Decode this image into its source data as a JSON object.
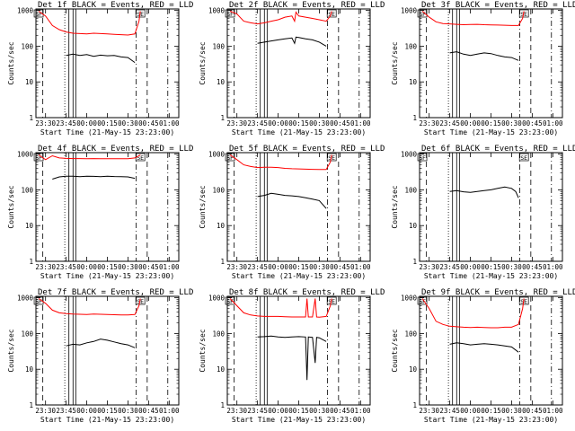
{
  "colors": {
    "events": "#000000",
    "lld": "#ff0000",
    "axis": "#000000",
    "background": "#ffffff"
  },
  "common": {
    "xlabel": "Start Time (21-May-15 23:23:00)",
    "ylabel": "Counts/sec",
    "x_ticks": [
      "23:30",
      "23:45",
      "00:00",
      "00:15",
      "00:30",
      "00:45",
      "01:00"
    ],
    "y_ticks": [
      "1",
      "10",
      "100",
      "1000"
    ]
  },
  "chart_data": [
    {
      "type": "line",
      "title": "Det 1f BLACK = Events, RED = LLD",
      "xlabel": "Start Time (21-May-15 23:23:00)",
      "ylabel": "Counts/sec",
      "xlim": [
        "23:23",
        "01:07"
      ],
      "ylim": [
        1,
        1100
      ],
      "ylog": true,
      "top_markers": [
        {
          "label": "SF",
          "time": "23:25"
        },
        {
          "label": "SE",
          "time": "00:39"
        }
      ],
      "series": [
        {
          "color": "#000000",
          "x": [
            "23:45",
            "23:50",
            "23:55",
            "00:00",
            "00:05",
            "00:10",
            "00:15",
            "00:20",
            "00:25",
            "00:30",
            "00:35"
          ],
          "y": [
            55,
            60,
            55,
            58,
            52,
            56,
            54,
            55,
            50,
            48,
            35
          ]
        },
        {
          "color": "#ff0000",
          "x": [
            "23:25",
            "23:30",
            "23:35",
            "23:40",
            "23:45",
            "23:50",
            "23:55",
            "00:00",
            "00:05",
            "00:10",
            "00:15",
            "00:20",
            "00:25",
            "00:30",
            "00:35",
            "00:38",
            "00:39"
          ],
          "y": [
            950,
            700,
            380,
            290,
            250,
            230,
            225,
            220,
            230,
            225,
            220,
            215,
            210,
            205,
            220,
            500,
            950
          ]
        }
      ]
    },
    {
      "type": "line",
      "title": "Det 2f BLACK = Events, RED = LLD",
      "xlabel": "Start Time (21-May-15 23:23:00)",
      "ylabel": "Counts/sec",
      "xlim": [
        "23:23",
        "01:07"
      ],
      "ylim": [
        1,
        1100
      ],
      "ylog": true,
      "top_markers": [
        {
          "label": "SF",
          "time": "23:25"
        },
        {
          "label": "SE",
          "time": "00:39"
        }
      ],
      "series": [
        {
          "color": "#000000",
          "x": [
            "23:45",
            "23:50",
            "23:55",
            "00:00",
            "00:05",
            "00:10",
            "00:12",
            "00:13",
            "00:15",
            "00:20",
            "00:25",
            "00:30",
            "00:35"
          ],
          "y": [
            120,
            130,
            140,
            150,
            160,
            170,
            120,
            180,
            175,
            160,
            150,
            130,
            100
          ]
        },
        {
          "color": "#ff0000",
          "x": [
            "23:25",
            "23:30",
            "23:35",
            "23:40",
            "23:45",
            "23:50",
            "23:55",
            "00:00",
            "00:05",
            "00:10",
            "00:12",
            "00:13",
            "00:15",
            "00:20",
            "00:25",
            "00:30",
            "00:35",
            "00:38",
            "00:39"
          ],
          "y": [
            950,
            800,
            500,
            450,
            420,
            450,
            500,
            550,
            650,
            700,
            500,
            900,
            700,
            650,
            600,
            550,
            500,
            700,
            950
          ]
        }
      ]
    },
    {
      "type": "line",
      "title": "Det 3f BLACK = Events, RED = LLD",
      "xlabel": "Start Time (21-May-15 23:23:00)",
      "ylabel": "Counts/sec",
      "xlim": [
        "23:23",
        "01:07"
      ],
      "ylim": [
        1,
        1100
      ],
      "ylog": true,
      "top_markers": [
        {
          "label": "SF",
          "time": "23:25"
        },
        {
          "label": "SE",
          "time": "00:39"
        }
      ],
      "series": [
        {
          "color": "#000000",
          "x": [
            "23:45",
            "23:50",
            "23:55",
            "00:00",
            "00:05",
            "00:10",
            "00:15",
            "00:20",
            "00:25",
            "00:30",
            "00:35"
          ],
          "y": [
            65,
            70,
            60,
            55,
            60,
            65,
            62,
            55,
            50,
            48,
            40
          ]
        },
        {
          "color": "#ff0000",
          "x": [
            "23:25",
            "23:30",
            "23:35",
            "23:40",
            "23:45",
            "23:50",
            "23:55",
            "00:00",
            "00:05",
            "00:10",
            "00:15",
            "00:20",
            "00:25",
            "00:30",
            "00:35",
            "00:38",
            "00:39"
          ],
          "y": [
            950,
            650,
            480,
            430,
            420,
            410,
            400,
            405,
            410,
            400,
            395,
            390,
            385,
            380,
            380,
            600,
            950
          ]
        }
      ]
    },
    {
      "type": "line",
      "title": "Det 4f BLACK = Events, RED = LLD",
      "xlabel": "Start Time (21-May-15 23:23:00)",
      "ylabel": "Counts/sec",
      "xlim": [
        "23:23",
        "01:07"
      ],
      "ylim": [
        1,
        1100
      ],
      "ylog": true,
      "top_markers": [
        {
          "label": "SF",
          "time": "23:25"
        },
        {
          "label": "SE",
          "time": "00:39"
        }
      ],
      "series": [
        {
          "color": "#000000",
          "x": [
            "23:35",
            "23:40",
            "23:45",
            "23:50",
            "23:55",
            "00:00",
            "00:05",
            "00:10",
            "00:15",
            "00:20",
            "00:25",
            "00:30",
            "00:35"
          ],
          "y": [
            200,
            230,
            240,
            240,
            235,
            240,
            238,
            235,
            240,
            236,
            234,
            230,
            210
          ]
        },
        {
          "color": "#ff0000",
          "x": [
            "23:25",
            "23:30",
            "23:35",
            "23:40",
            "23:45",
            "23:50",
            "23:55",
            "00:00",
            "00:05",
            "00:10",
            "00:15",
            "00:20",
            "00:25",
            "00:30",
            "00:35",
            "00:38",
            "00:39"
          ],
          "y": [
            950,
            700,
            900,
            780,
            760,
            750,
            750,
            745,
            750,
            748,
            745,
            745,
            740,
            740,
            780,
            900,
            950
          ]
        }
      ]
    },
    {
      "type": "line",
      "title": "Det 5f BLACK = Events, RED = LLD",
      "xlabel": "Start Time (21-May-15 23:23:00)",
      "ylabel": "Counts/sec",
      "xlim": [
        "23:23",
        "01:07"
      ],
      "ylim": [
        1,
        1100
      ],
      "ylog": true,
      "top_markers": [
        {
          "label": "SF",
          "time": "23:25"
        },
        {
          "label": "SE",
          "time": "00:39"
        }
      ],
      "series": [
        {
          "color": "#000000",
          "x": [
            "23:45",
            "23:50",
            "23:55",
            "00:00",
            "00:05",
            "00:10",
            "00:15",
            "00:20",
            "00:25",
            "00:30",
            "00:35"
          ],
          "y": [
            65,
            70,
            80,
            75,
            70,
            68,
            65,
            60,
            55,
            50,
            30
          ]
        },
        {
          "color": "#ff0000",
          "x": [
            "23:25",
            "23:30",
            "23:35",
            "23:40",
            "23:45",
            "23:50",
            "23:55",
            "00:00",
            "00:05",
            "00:10",
            "00:15",
            "00:20",
            "00:25",
            "00:30",
            "00:35",
            "00:38",
            "00:39"
          ],
          "y": [
            950,
            700,
            500,
            450,
            420,
            430,
            430,
            420,
            400,
            390,
            385,
            380,
            375,
            370,
            370,
            600,
            950
          ]
        }
      ]
    },
    {
      "type": "line",
      "title": "Det 6f BLACK = Events, RED = LLD",
      "xlabel": "Start Time (21-May-15 23:23:00)",
      "ylabel": "Counts/sec",
      "xlim": [
        "23:23",
        "01:07"
      ],
      "ylim": [
        1,
        1100
      ],
      "ylog": true,
      "top_markers": [
        {
          "label": "SF",
          "time": "23:25"
        },
        {
          "label": "SE",
          "time": "00:39"
        }
      ],
      "series": [
        {
          "color": "#000000",
          "x": [
            "23:45",
            "23:50",
            "23:55",
            "00:00",
            "00:05",
            "00:10",
            "00:15",
            "00:20",
            "00:25",
            "00:30",
            "00:33",
            "00:35"
          ],
          "y": [
            90,
            95,
            88,
            85,
            90,
            95,
            100,
            110,
            120,
            110,
            90,
            60
          ]
        }
      ]
    },
    {
      "type": "line",
      "title": "Det 7f BLACK = Events, RED = LLD",
      "xlabel": "Start Time (21-May-15 23:23:00)",
      "ylabel": "Counts/sec",
      "xlim": [
        "23:23",
        "01:07"
      ],
      "ylim": [
        1,
        1100
      ],
      "ylog": true,
      "top_markers": [
        {
          "label": "SF",
          "time": "23:25"
        },
        {
          "label": "SE",
          "time": "00:39"
        }
      ],
      "series": [
        {
          "color": "#000000",
          "x": [
            "23:45",
            "23:50",
            "23:55",
            "00:00",
            "00:05",
            "00:10",
            "00:15",
            "00:20",
            "00:25",
            "00:30",
            "00:35"
          ],
          "y": [
            45,
            50,
            48,
            55,
            60,
            70,
            65,
            58,
            52,
            48,
            40
          ]
        },
        {
          "color": "#ff0000",
          "x": [
            "23:25",
            "23:30",
            "23:35",
            "23:40",
            "23:45",
            "23:50",
            "23:55",
            "00:00",
            "00:05",
            "00:10",
            "00:15",
            "00:20",
            "00:25",
            "00:30",
            "00:35",
            "00:38",
            "00:39"
          ],
          "y": [
            950,
            700,
            450,
            380,
            360,
            350,
            345,
            340,
            350,
            345,
            340,
            335,
            330,
            330,
            340,
            600,
            950
          ]
        }
      ]
    },
    {
      "type": "line",
      "title": "Det 8f BLACK = Events, RED = LLD",
      "xlabel": "Start Time (21-May-15 23:23:00)",
      "ylabel": "Counts/sec",
      "xlim": [
        "23:23",
        "01:07"
      ],
      "ylim": [
        1,
        1100
      ],
      "ylog": true,
      "top_markers": [
        {
          "label": "SF",
          "time": "23:25"
        },
        {
          "label": "SE",
          "time": "00:39"
        }
      ],
      "series": [
        {
          "color": "#000000",
          "x": [
            "23:45",
            "23:50",
            "23:55",
            "00:00",
            "00:05",
            "00:10",
            "00:15",
            "00:20",
            "00:21",
            "00:22",
            "00:25",
            "00:27",
            "00:28",
            "00:30",
            "00:35"
          ],
          "y": [
            80,
            82,
            85,
            80,
            78,
            80,
            82,
            80,
            5,
            80,
            78,
            15,
            78,
            76,
            60
          ]
        },
        {
          "color": "#ff0000",
          "x": [
            "23:25",
            "23:30",
            "23:35",
            "23:40",
            "23:45",
            "23:50",
            "23:55",
            "00:00",
            "00:05",
            "00:10",
            "00:15",
            "00:20",
            "00:21",
            "00:22",
            "00:25",
            "00:27",
            "00:28",
            "00:30",
            "00:35",
            "00:38",
            "00:39"
          ],
          "y": [
            950,
            600,
            380,
            330,
            310,
            300,
            300,
            300,
            295,
            290,
            290,
            290,
            950,
            290,
            290,
            950,
            290,
            285,
            300,
            600,
            950
          ]
        }
      ]
    },
    {
      "type": "line",
      "title": "Det 9f BLACK = Events, RED = LLD",
      "xlabel": "Start Time (21-May-15 23:23:00)",
      "ylabel": "Counts/sec",
      "xlim": [
        "23:23",
        "01:07"
      ],
      "ylim": [
        1,
        1100
      ],
      "ylog": true,
      "top_markers": [
        {
          "label": "SF",
          "time": "23:25"
        },
        {
          "label": "SE",
          "time": "00:39"
        }
      ],
      "series": [
        {
          "color": "#000000",
          "x": [
            "23:45",
            "23:50",
            "23:55",
            "00:00",
            "00:05",
            "00:10",
            "00:15",
            "00:20",
            "00:25",
            "00:30",
            "00:35"
          ],
          "y": [
            50,
            55,
            52,
            48,
            50,
            52,
            50,
            48,
            45,
            42,
            30
          ]
        },
        {
          "color": "#ff0000",
          "x": [
            "23:25",
            "23:30",
            "23:35",
            "23:40",
            "23:45",
            "23:50",
            "23:55",
            "00:00",
            "00:05",
            "00:10",
            "00:15",
            "00:20",
            "00:25",
            "00:30",
            "00:35",
            "00:38",
            "00:39"
          ],
          "y": [
            950,
            500,
            220,
            180,
            160,
            155,
            150,
            148,
            150,
            148,
            145,
            145,
            150,
            150,
            180,
            500,
            950
          ]
        }
      ]
    }
  ]
}
